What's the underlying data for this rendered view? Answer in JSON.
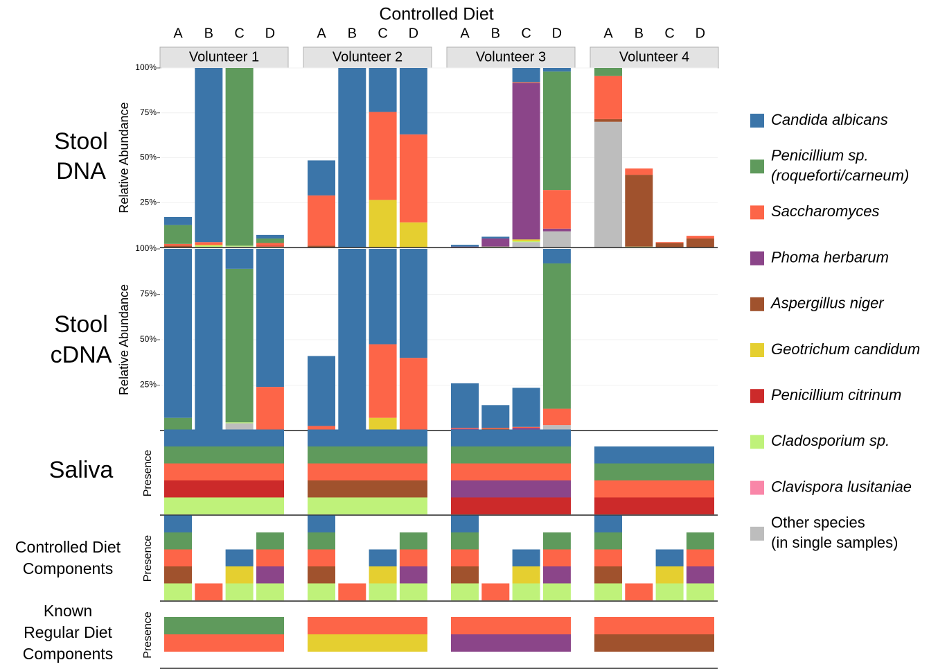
{
  "chart_data": {
    "type": "bar",
    "title": "Controlled Diet",
    "facets": [
      "Volunteer 1",
      "Volunteer 2",
      "Volunteer 3",
      "Volunteer 4"
    ],
    "categories": [
      "A",
      "B",
      "C",
      "D"
    ],
    "species": [
      {
        "name": [
          "Candida albicans"
        ],
        "color": "#3b75a9"
      },
      {
        "name": [
          "Penicillium sp.",
          "(roqueforti/carneum)"
        ],
        "color": "#5f9a5c"
      },
      {
        "name": [
          "Saccharomyces"
        ],
        "color": "#fd6548"
      },
      {
        "name": [
          "Phoma herbarum"
        ],
        "color": "#8b4589"
      },
      {
        "name": [
          "Aspergillus niger"
        ],
        "color": "#a0522d"
      },
      {
        "name": [
          "Geotrichum candidum"
        ],
        "color": "#e5cf30"
      },
      {
        "name": [
          "Penicillium citrinum"
        ],
        "color": "#cc2a2a"
      },
      {
        "name": [
          "Cladosporium sp."
        ],
        "color": "#bff27a"
      },
      {
        "name": [
          "Clavispora lusitaniae"
        ],
        "color": "#f986a8"
      },
      {
        "name": [
          "Other species",
          "(in single samples)"
        ],
        "color": "#bdbdbd"
      }
    ],
    "panels": [
      {
        "type": "bar",
        "label": [
          "Stool",
          "DNA"
        ],
        "ylabel": "Relative Abundance",
        "ylim": [
          0,
          100
        ],
        "yticks": [
          {
            "value": 100,
            "label": "100%"
          },
          {
            "value": 75,
            "label": "75%"
          },
          {
            "value": 50,
            "label": "50%"
          },
          {
            "value": 25,
            "label": "25%"
          }
        ],
        "values": [
          [
            4.5,
            10.5,
            1,
            0,
            1,
            0,
            0,
            0,
            0,
            0
          ],
          [
            97,
            0,
            1.5,
            0,
            0,
            0.5,
            0,
            1,
            0,
            0
          ],
          [
            0,
            99,
            0,
            0,
            0,
            0,
            0,
            0.5,
            0,
            0.5
          ],
          [
            2,
            2.5,
            1.5,
            0,
            0,
            0,
            0.5,
            0.5,
            0,
            0
          ],
          [
            19.5,
            0,
            28,
            0,
            1,
            0,
            0,
            0,
            0,
            0
          ],
          [
            100,
            0,
            0,
            0,
            0,
            0,
            0,
            0,
            0,
            0
          ],
          [
            24.5,
            0,
            49,
            0,
            0,
            26.5,
            0,
            0,
            0,
            0
          ],
          [
            37,
            0,
            49,
            0,
            0,
            14,
            0,
            0,
            0,
            0
          ],
          [
            1,
            0,
            0,
            0.5,
            0,
            0,
            0,
            0,
            0,
            0
          ],
          [
            1,
            0,
            0,
            4.5,
            0,
            0,
            0,
            0.5,
            0,
            0
          ],
          [
            8,
            0,
            0.5,
            87,
            0,
            1,
            0,
            0.5,
            0,
            3
          ],
          [
            2,
            66,
            21.5,
            1.5,
            0,
            0,
            0,
            0,
            0,
            9
          ],
          [
            0,
            4.5,
            24,
            0,
            1.5,
            0,
            0,
            0,
            0,
            70
          ],
          [
            0,
            0,
            3.5,
            0,
            40,
            0,
            0,
            0.5,
            0,
            0
          ],
          [
            0,
            0,
            0.5,
            0,
            2.5,
            0,
            0,
            0,
            0,
            0
          ],
          [
            0,
            0,
            1.5,
            0,
            5,
            0,
            0,
            0,
            0,
            0
          ]
        ]
      },
      {
        "type": "bar",
        "label": [
          "Stool",
          "cDNA"
        ],
        "ylabel": "Relative Abundance",
        "ylim": [
          0,
          100
        ],
        "yticks": [
          {
            "value": 100,
            "label": "100%"
          },
          {
            "value": 75,
            "label": "75%"
          },
          {
            "value": 50,
            "label": "50%"
          },
          {
            "value": 25,
            "label": "25%"
          }
        ],
        "values": [
          [
            93,
            7,
            0,
            0,
            0,
            0,
            0,
            0,
            0,
            0
          ],
          [
            99.5,
            0,
            0,
            0,
            0.5,
            0,
            0,
            0,
            0,
            0
          ],
          [
            11,
            84.5,
            0,
            0,
            0,
            0,
            0,
            0.5,
            0,
            4
          ],
          [
            76,
            0,
            24,
            0,
            0,
            0,
            0,
            0,
            0,
            0
          ],
          [
            38.5,
            0,
            2.5,
            0,
            0,
            0,
            0,
            0,
            0,
            0
          ],
          [
            100,
            0,
            0,
            0,
            0,
            0,
            0,
            0,
            0,
            0
          ],
          [
            52.5,
            0,
            40.5,
            0,
            0,
            7,
            0,
            0,
            0,
            0
          ],
          [
            60,
            0,
            40,
            0,
            0,
            0,
            0,
            0,
            0,
            0
          ],
          [
            24.5,
            0,
            0.5,
            1,
            0,
            0,
            0,
            0,
            0,
            0
          ],
          [
            12.5,
            0,
            0.5,
            0,
            0.5,
            0,
            0,
            0,
            0,
            0.5
          ],
          [
            21.5,
            0,
            0.5,
            1,
            0,
            0,
            0,
            0,
            0,
            0.5
          ],
          [
            8,
            80,
            9,
            0,
            0,
            0,
            0,
            0,
            0,
            3
          ],
          null,
          null,
          null,
          null
        ]
      },
      {
        "type": "presence",
        "label": [
          "Saliva"
        ],
        "ylabel": "Presence",
        "by": "facet",
        "present": [
          [
            0,
            1,
            2,
            6,
            7
          ],
          [
            0,
            1,
            2,
            4,
            7
          ],
          [
            0,
            1,
            2,
            3,
            6
          ],
          [
            0,
            1,
            2,
            6
          ]
        ]
      },
      {
        "type": "presence",
        "label": [
          "Controlled Diet",
          "Components"
        ],
        "ylabel": "Presence",
        "by": "category",
        "present": [
          [
            0,
            1,
            2,
            4,
            7
          ],
          [
            2
          ],
          [
            0,
            5,
            7
          ],
          [
            1,
            2,
            3,
            7
          ]
        ]
      },
      {
        "type": "presence",
        "label": [
          "Known",
          "Regular Diet",
          "Components"
        ],
        "ylabel": "Presence",
        "by": "facet",
        "present": [
          [
            1,
            2
          ],
          [
            2,
            5
          ],
          [
            2,
            3
          ],
          [
            2,
            4
          ]
        ]
      }
    ]
  }
}
